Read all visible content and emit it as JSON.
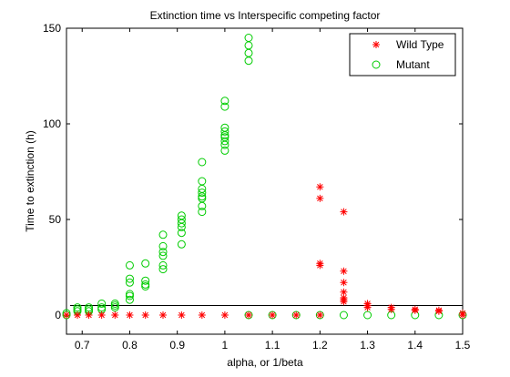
{
  "chart_data": {
    "type": "scatter",
    "title": "Extinction time vs Interspecific competing factor",
    "xlabel": "alpha, or 1/beta",
    "ylabel": "Time to extinction (h)",
    "xlim": [
      0.667,
      1.5
    ],
    "ylim": [
      -10,
      150
    ],
    "xticks": [
      0.7,
      0.8,
      0.9,
      1.0,
      1.1,
      1.2,
      1.3,
      1.4,
      1.5
    ],
    "xtick_labels": [
      "0.7",
      "0.8",
      "0.9",
      "1",
      "1.1",
      "1.2",
      "1.3",
      "1.4",
      "1.5"
    ],
    "yticks": [
      0,
      50,
      100,
      150
    ],
    "ytick_labels": [
      "0",
      "50",
      "100",
      "150"
    ],
    "grid": false,
    "legend_position": "top-right",
    "reference_line": {
      "y": 5
    },
    "series": [
      {
        "name": "Wild Type",
        "marker": "star",
        "color": "#ff0000",
        "points": [
          [
            0.667,
            0
          ],
          [
            0.69,
            0
          ],
          [
            0.714,
            0
          ],
          [
            0.741,
            0
          ],
          [
            0.769,
            0
          ],
          [
            0.8,
            0
          ],
          [
            0.833,
            0
          ],
          [
            0.87,
            0
          ],
          [
            0.909,
            0
          ],
          [
            0.952,
            0
          ],
          [
            1.0,
            0
          ],
          [
            1.05,
            0
          ],
          [
            1.1,
            0
          ],
          [
            1.15,
            0
          ],
          [
            1.2,
            0
          ],
          [
            1.2,
            67
          ],
          [
            1.2,
            61
          ],
          [
            1.2,
            27
          ],
          [
            1.2,
            26
          ],
          [
            1.25,
            54
          ],
          [
            1.25,
            23
          ],
          [
            1.25,
            17
          ],
          [
            1.25,
            12
          ],
          [
            1.25,
            9
          ],
          [
            1.25,
            8
          ],
          [
            1.25,
            7
          ],
          [
            1.3,
            6
          ],
          [
            1.3,
            5
          ],
          [
            1.3,
            4
          ],
          [
            1.35,
            4
          ],
          [
            1.35,
            3
          ],
          [
            1.4,
            3
          ],
          [
            1.4,
            2.5
          ],
          [
            1.45,
            2
          ],
          [
            1.45,
            2.5
          ],
          [
            1.5,
            1
          ],
          [
            1.5,
            0
          ]
        ]
      },
      {
        "name": "Mutant",
        "marker": "circle",
        "color": "#00cc00",
        "points": [
          [
            0.667,
            0
          ],
          [
            0.667,
            1
          ],
          [
            0.69,
            2
          ],
          [
            0.69,
            3
          ],
          [
            0.69,
            4
          ],
          [
            0.714,
            2
          ],
          [
            0.714,
            3
          ],
          [
            0.714,
            4
          ],
          [
            0.741,
            3
          ],
          [
            0.741,
            4
          ],
          [
            0.741,
            6
          ],
          [
            0.769,
            4
          ],
          [
            0.769,
            5
          ],
          [
            0.769,
            6
          ],
          [
            0.8,
            8
          ],
          [
            0.8,
            10
          ],
          [
            0.8,
            11
          ],
          [
            0.8,
            17
          ],
          [
            0.8,
            19
          ],
          [
            0.8,
            26
          ],
          [
            0.833,
            15
          ],
          [
            0.833,
            16
          ],
          [
            0.833,
            18
          ],
          [
            0.833,
            27
          ],
          [
            0.87,
            24
          ],
          [
            0.87,
            26
          ],
          [
            0.87,
            31
          ],
          [
            0.87,
            33
          ],
          [
            0.87,
            36
          ],
          [
            0.87,
            42
          ],
          [
            0.909,
            37
          ],
          [
            0.909,
            43
          ],
          [
            0.909,
            46
          ],
          [
            0.909,
            48
          ],
          [
            0.909,
            50
          ],
          [
            0.909,
            52
          ],
          [
            0.952,
            54
          ],
          [
            0.952,
            57
          ],
          [
            0.952,
            61
          ],
          [
            0.952,
            62
          ],
          [
            0.952,
            64
          ],
          [
            0.952,
            66
          ],
          [
            0.952,
            70
          ],
          [
            0.952,
            80
          ],
          [
            1.0,
            86
          ],
          [
            1.0,
            89
          ],
          [
            1.0,
            91
          ],
          [
            1.0,
            93
          ],
          [
            1.0,
            94
          ],
          [
            1.0,
            96
          ],
          [
            1.0,
            98
          ],
          [
            1.0,
            109
          ],
          [
            1.0,
            112
          ],
          [
            1.05,
            133
          ],
          [
            1.05,
            137
          ],
          [
            1.05,
            141
          ],
          [
            1.05,
            145
          ],
          [
            1.05,
            0
          ],
          [
            1.1,
            0
          ],
          [
            1.15,
            0
          ],
          [
            1.2,
            0
          ],
          [
            1.25,
            0
          ],
          [
            1.3,
            0
          ],
          [
            1.35,
            0
          ],
          [
            1.4,
            0
          ],
          [
            1.45,
            0
          ],
          [
            1.5,
            0
          ]
        ]
      }
    ]
  }
}
